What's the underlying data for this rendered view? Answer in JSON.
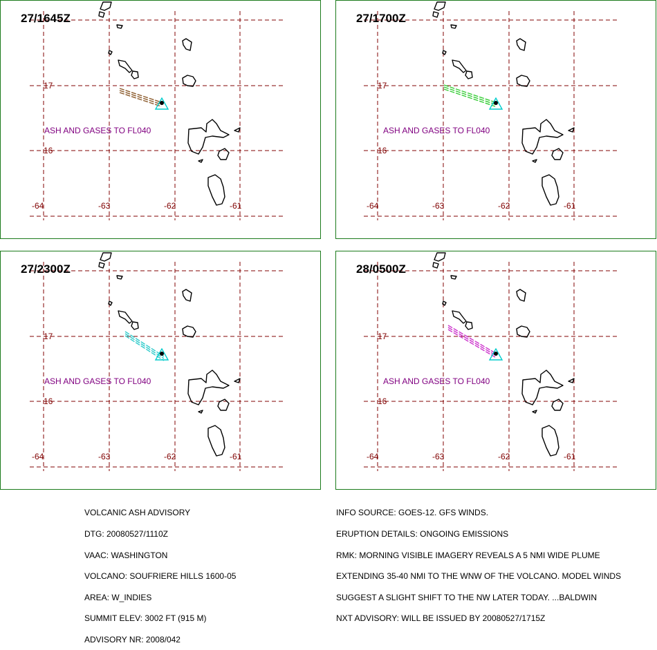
{
  "panels": [
    {
      "time": "27/1645Z",
      "ash_text": "ASH AND GASES TO FL040",
      "plume_color": "#8b5a2b",
      "plume_style": "brown"
    },
    {
      "time": "27/1700Z",
      "ash_text": "ASH AND GASES TO FL040",
      "plume_color": "#33cc33",
      "plume_style": "green"
    },
    {
      "time": "27/2300Z",
      "ash_text": "ASH AND GASES TO FL040",
      "plume_color": "#33cccc",
      "plume_style": "cyan"
    },
    {
      "time": "28/0500Z",
      "ash_text": "ASH AND GASES TO FL040",
      "plume_color": "#cc33cc",
      "plume_style": "magenta"
    }
  ],
  "map_labels": {
    "lat": [
      "17",
      "16"
    ],
    "lon": [
      "-64",
      "-63",
      "-62",
      "-61"
    ]
  },
  "colors": {
    "grid": "#800000",
    "coast": "#000000",
    "volcano": "#00cccc",
    "border": "#1a7a1a",
    "ash_text": "#800080"
  },
  "advisory_left": [
    "VOLCANIC ASH ADVISORY",
    "DTG: 20080527/1110Z",
    "VAAC: WASHINGTON",
    "VOLCANO: SOUFRIERE HILLS 1600-05",
    "AREA: W_INDIES",
    "SUMMIT ELEV: 3002 FT (915 M)",
    "ADVISORY NR: 2008/042"
  ],
  "advisory_right": [
    "INFO SOURCE: GOES-12. GFS WINDS.",
    "ERUPTION DETAILS: ONGOING EMISSIONS",
    "RMK: MORNING VISIBLE IMAGERY REVEALS A 5 NMI WIDE PLUME",
    "EXTENDING 35-40 NMI TO THE WNW OF THE VOLCANO. MODEL WINDS",
    "SUGGEST A SLIGHT SHIFT TO THE NW LATER TODAY. ...BALDWIN",
    "NXT ADVISORY: WILL BE ISSUED BY 20080527/1715Z"
  ]
}
